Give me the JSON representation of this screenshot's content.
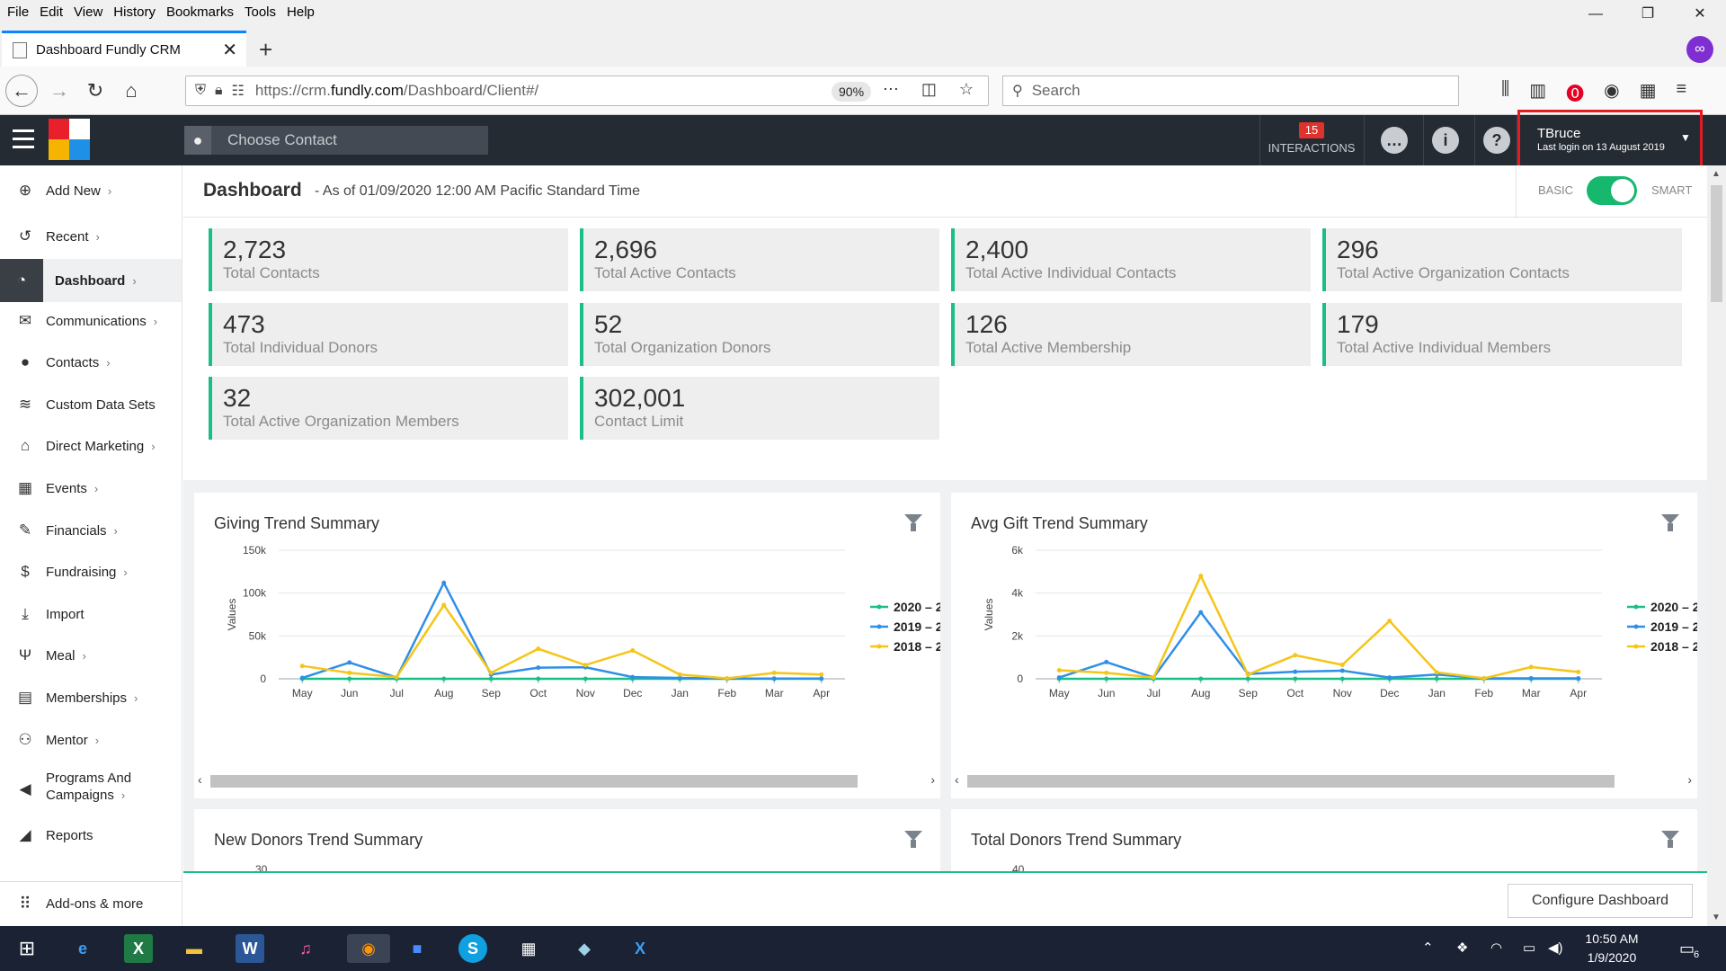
{
  "browser": {
    "menu": [
      "File",
      "Edit",
      "View",
      "History",
      "Bookmarks",
      "Tools",
      "Help"
    ],
    "tab_title": "Dashboard Fundly CRM",
    "url_prefix": "https://crm.",
    "url_domain": "fundly.com",
    "url_path": "/Dashboard/Client#/",
    "zoom": "90%",
    "search_placeholder": "Search"
  },
  "header": {
    "contact_placeholder": "Choose Contact",
    "interactions_count": "15",
    "interactions_label": "INTERACTIONS",
    "user_name": "TBruce",
    "last_login": "Last login on 13 August 2019"
  },
  "sidebar": {
    "items": [
      {
        "label": "Add New",
        "icon": "plus-circle-icon",
        "chev": "›"
      },
      {
        "label": "Recent",
        "icon": "history-icon",
        "chev": "›"
      },
      {
        "label": "Dashboard",
        "icon": "dashboard-gauge-icon",
        "chev": "›"
      },
      {
        "label": "Communications",
        "icon": "envelope-icon",
        "chev": "›"
      },
      {
        "label": "Contacts",
        "icon": "person-icon",
        "chev": "›"
      },
      {
        "label": "Custom Data Sets",
        "icon": "layers-icon",
        "chev": ""
      },
      {
        "label": "Direct Marketing",
        "icon": "building-icon",
        "chev": "›"
      },
      {
        "label": "Events",
        "icon": "calendar-icon",
        "chev": "›"
      },
      {
        "label": "Financials",
        "icon": "ticket-icon",
        "chev": "›"
      },
      {
        "label": "Fundraising",
        "icon": "money-bag-icon",
        "chev": "›"
      },
      {
        "label": "Import",
        "icon": "download-icon",
        "chev": ""
      },
      {
        "label": "Meal",
        "icon": "utensils-icon",
        "chev": "›"
      },
      {
        "label": "Memberships",
        "icon": "id-card-icon",
        "chev": "›"
      },
      {
        "label": "Mentor",
        "icon": "mentor-icon",
        "chev": "›"
      },
      {
        "label": "Programs And",
        "label2": "Campaigns",
        "icon": "megaphone-icon",
        "chev": "›"
      },
      {
        "label": "Reports",
        "icon": "area-chart-icon",
        "chev": ""
      }
    ],
    "addons_label": "Add-ons & more"
  },
  "dashboard": {
    "title": "Dashboard",
    "as_of": "- As of 01/09/2020 12:00 AM Pacific Standard Time",
    "basic": "BASIC",
    "smart": "SMART",
    "stats": [
      {
        "value": "2,723",
        "label": "Total Contacts"
      },
      {
        "value": "2,696",
        "label": "Total Active Contacts"
      },
      {
        "value": "2,400",
        "label": "Total Active Individual Contacts"
      },
      {
        "value": "296",
        "label": "Total Active Organization Contacts"
      },
      {
        "value": "473",
        "label": "Total Individual Donors"
      },
      {
        "value": "52",
        "label": "Total Organization Donors"
      },
      {
        "value": "126",
        "label": "Total Active Membership"
      },
      {
        "value": "179",
        "label": "Total Active Individual Members"
      },
      {
        "value": "32",
        "label": "Total Active Organization Members"
      },
      {
        "value": "302,001",
        "label": "Contact Limit"
      }
    ],
    "card_titles": [
      "Giving Trend Summary",
      "Avg Gift Trend Summary",
      "New Donors Trend Summary",
      "Total Donors Trend Summary"
    ],
    "configure_label": "Configure Dashboard"
  },
  "chart_data": [
    {
      "type": "line",
      "title": "Giving Trend Summary",
      "ylabel": "Values",
      "ylim": [
        0,
        150000
      ],
      "yticks": [
        "0",
        "50k",
        "100k",
        "150k"
      ],
      "categories": [
        "May",
        "Jun",
        "Jul",
        "Aug",
        "Sep",
        "Oct",
        "Nov",
        "Dec",
        "Jan",
        "Feb",
        "Mar",
        "Apr"
      ],
      "legend": "right",
      "series": [
        {
          "name": "2020 – 2",
          "color": "#1bbf86",
          "values": [
            0,
            0,
            0,
            0,
            0,
            0,
            0,
            0,
            0,
            0,
            0,
            0
          ]
        },
        {
          "name": "2019 – 2",
          "color": "#2f8fe8",
          "values": [
            1000,
            19000,
            1500,
            112000,
            5000,
            13000,
            13500,
            2000,
            1000,
            200,
            300,
            300
          ]
        },
        {
          "name": "2018 – 2",
          "color": "#f5c518",
          "values": [
            15000,
            7000,
            2000,
            86000,
            7000,
            35000,
            16000,
            33000,
            5000,
            500,
            7000,
            5000
          ]
        }
      ]
    },
    {
      "type": "line",
      "title": "Avg Gift Trend Summary",
      "ylabel": "Values",
      "ylim": [
        0,
        6000
      ],
      "yticks": [
        "0",
        "2k",
        "4k",
        "6k"
      ],
      "categories": [
        "May",
        "Jun",
        "Jul",
        "Aug",
        "Sep",
        "Oct",
        "Nov",
        "Dec",
        "Jan",
        "Feb",
        "Mar",
        "Apr"
      ],
      "legend": "right",
      "series": [
        {
          "name": "2020 – 2",
          "color": "#1bbf86",
          "values": [
            0,
            0,
            0,
            0,
            0,
            0,
            0,
            0,
            0,
            0,
            0,
            0
          ]
        },
        {
          "name": "2019 – 2",
          "color": "#2f8fe8",
          "values": [
            60,
            780,
            60,
            3100,
            230,
            330,
            380,
            60,
            200,
            20,
            20,
            20
          ]
        },
        {
          "name": "2018 – 2",
          "color": "#f5c518",
          "values": [
            400,
            280,
            60,
            4800,
            200,
            1100,
            650,
            2700,
            300,
            20,
            550,
            320
          ]
        }
      ]
    },
    {
      "type": "line",
      "title": "New Donors Trend Summary",
      "yticks": [
        "30",
        "20"
      ],
      "categories": [],
      "series": []
    },
    {
      "type": "line",
      "title": "Total Donors Trend Summary",
      "yticks": [
        "40"
      ],
      "categories": [],
      "series": []
    }
  ],
  "taskbar": {
    "time": "10:50 AM",
    "date": "1/9/2020",
    "notifications": "6"
  }
}
